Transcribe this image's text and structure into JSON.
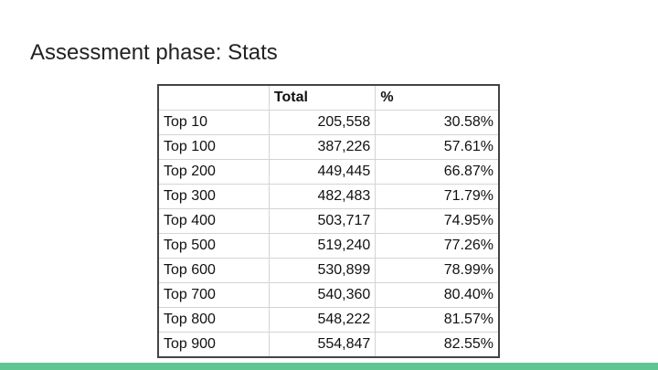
{
  "title": "Assessment phase: Stats",
  "table": {
    "header": [
      "",
      "Total",
      "%"
    ],
    "rows": [
      [
        "Top 10",
        "205,558",
        "30.58%"
      ],
      [
        "Top 100",
        "387,226",
        "57.61%"
      ],
      [
        "Top 200",
        "449,445",
        "66.87%"
      ],
      [
        "Top 300",
        "482,483",
        "71.79%"
      ],
      [
        "Top 400",
        "503,717",
        "74.95%"
      ],
      [
        "Top 500",
        "519,240",
        "77.26%"
      ],
      [
        "Top 600",
        "530,899",
        "78.99%"
      ],
      [
        "Top 700",
        "540,360",
        "80.40%"
      ],
      [
        "Top 800",
        "548,222",
        "81.57%"
      ],
      [
        "Top 900",
        "554,847",
        "82.55%"
      ]
    ]
  }
}
